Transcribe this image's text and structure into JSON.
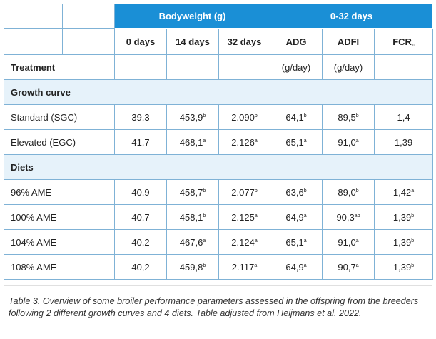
{
  "table": {
    "group_headers": {
      "bodyweight": "Bodyweight (g)",
      "period": "0-32 days"
    },
    "sub_headers": {
      "d0": "0 days",
      "d14": "14 days",
      "d32": "32 days",
      "adg": "ADG",
      "adfi": "ADFI",
      "fcr": "FCR",
      "fcr_sub": "c"
    },
    "treatment_row": {
      "label": "Treatment",
      "adg_unit": "(g/day)",
      "adfi_unit": "(g/day)"
    },
    "sections": [
      {
        "title": "Growth curve",
        "rows": [
          {
            "label": "Standard (SGC)",
            "d0": "39,3",
            "d14": "453,9",
            "d14_sup": "b",
            "d32": "2.090",
            "d32_sup": "b",
            "adg": "64,1",
            "adg_sup": "b",
            "adfi": "89,5",
            "adfi_sup": "b",
            "fcr": "1,4",
            "fcr_sup": ""
          },
          {
            "label": "Elevated (EGC)",
            "d0": "41,7",
            "d14": "468,1",
            "d14_sup": "a",
            "d32": "2.126",
            "d32_sup": "a",
            "adg": "65,1",
            "adg_sup": "a",
            "adfi": "91,0",
            "adfi_sup": "a",
            "fcr": "1,39",
            "fcr_sup": ""
          }
        ]
      },
      {
        "title": "Diets",
        "rows": [
          {
            "label": "96% AME",
            "d0": "40,9",
            "d14": "458,7",
            "d14_sup": "b",
            "d32": "2.077",
            "d32_sup": "b",
            "adg": "63,6",
            "adg_sup": "b",
            "adfi": "89,0",
            "adfi_sup": "b",
            "fcr": "1,42",
            "fcr_sup": "a"
          },
          {
            "label": "100% AME",
            "d0": "40,7",
            "d14": "458,1",
            "d14_sup": "b",
            "d32": "2.125",
            "d32_sup": "a",
            "adg": "64,9",
            "adg_sup": "a",
            "adfi": "90,3",
            "adfi_sup": "ab",
            "fcr": "1,39",
            "fcr_sup": "b"
          },
          {
            "label": "104% AME",
            "d0": "40,2",
            "d14": "467,6",
            "d14_sup": "a",
            "d32": "2.124",
            "d32_sup": "a",
            "adg": "65,1",
            "adg_sup": "a",
            "adfi": "91,0",
            "adfi_sup": "a",
            "fcr": "1,39",
            "fcr_sup": "b"
          },
          {
            "label": "108% AME",
            "d0": "40,2",
            "d14": "459,8",
            "d14_sup": "b",
            "d32": "2.117",
            "d32_sup": "a",
            "adg": "64,9",
            "adg_sup": "a",
            "adfi": "90,7",
            "adfi_sup": "a",
            "fcr": "1,39",
            "fcr_sup": "b"
          }
        ]
      }
    ]
  },
  "caption": "Table 3. Overview of some broiler performance parameters assessed in the offspring from the breeders following 2 different growth curves and 4 diets. Table adjusted from Heijmans et al. 2022."
}
